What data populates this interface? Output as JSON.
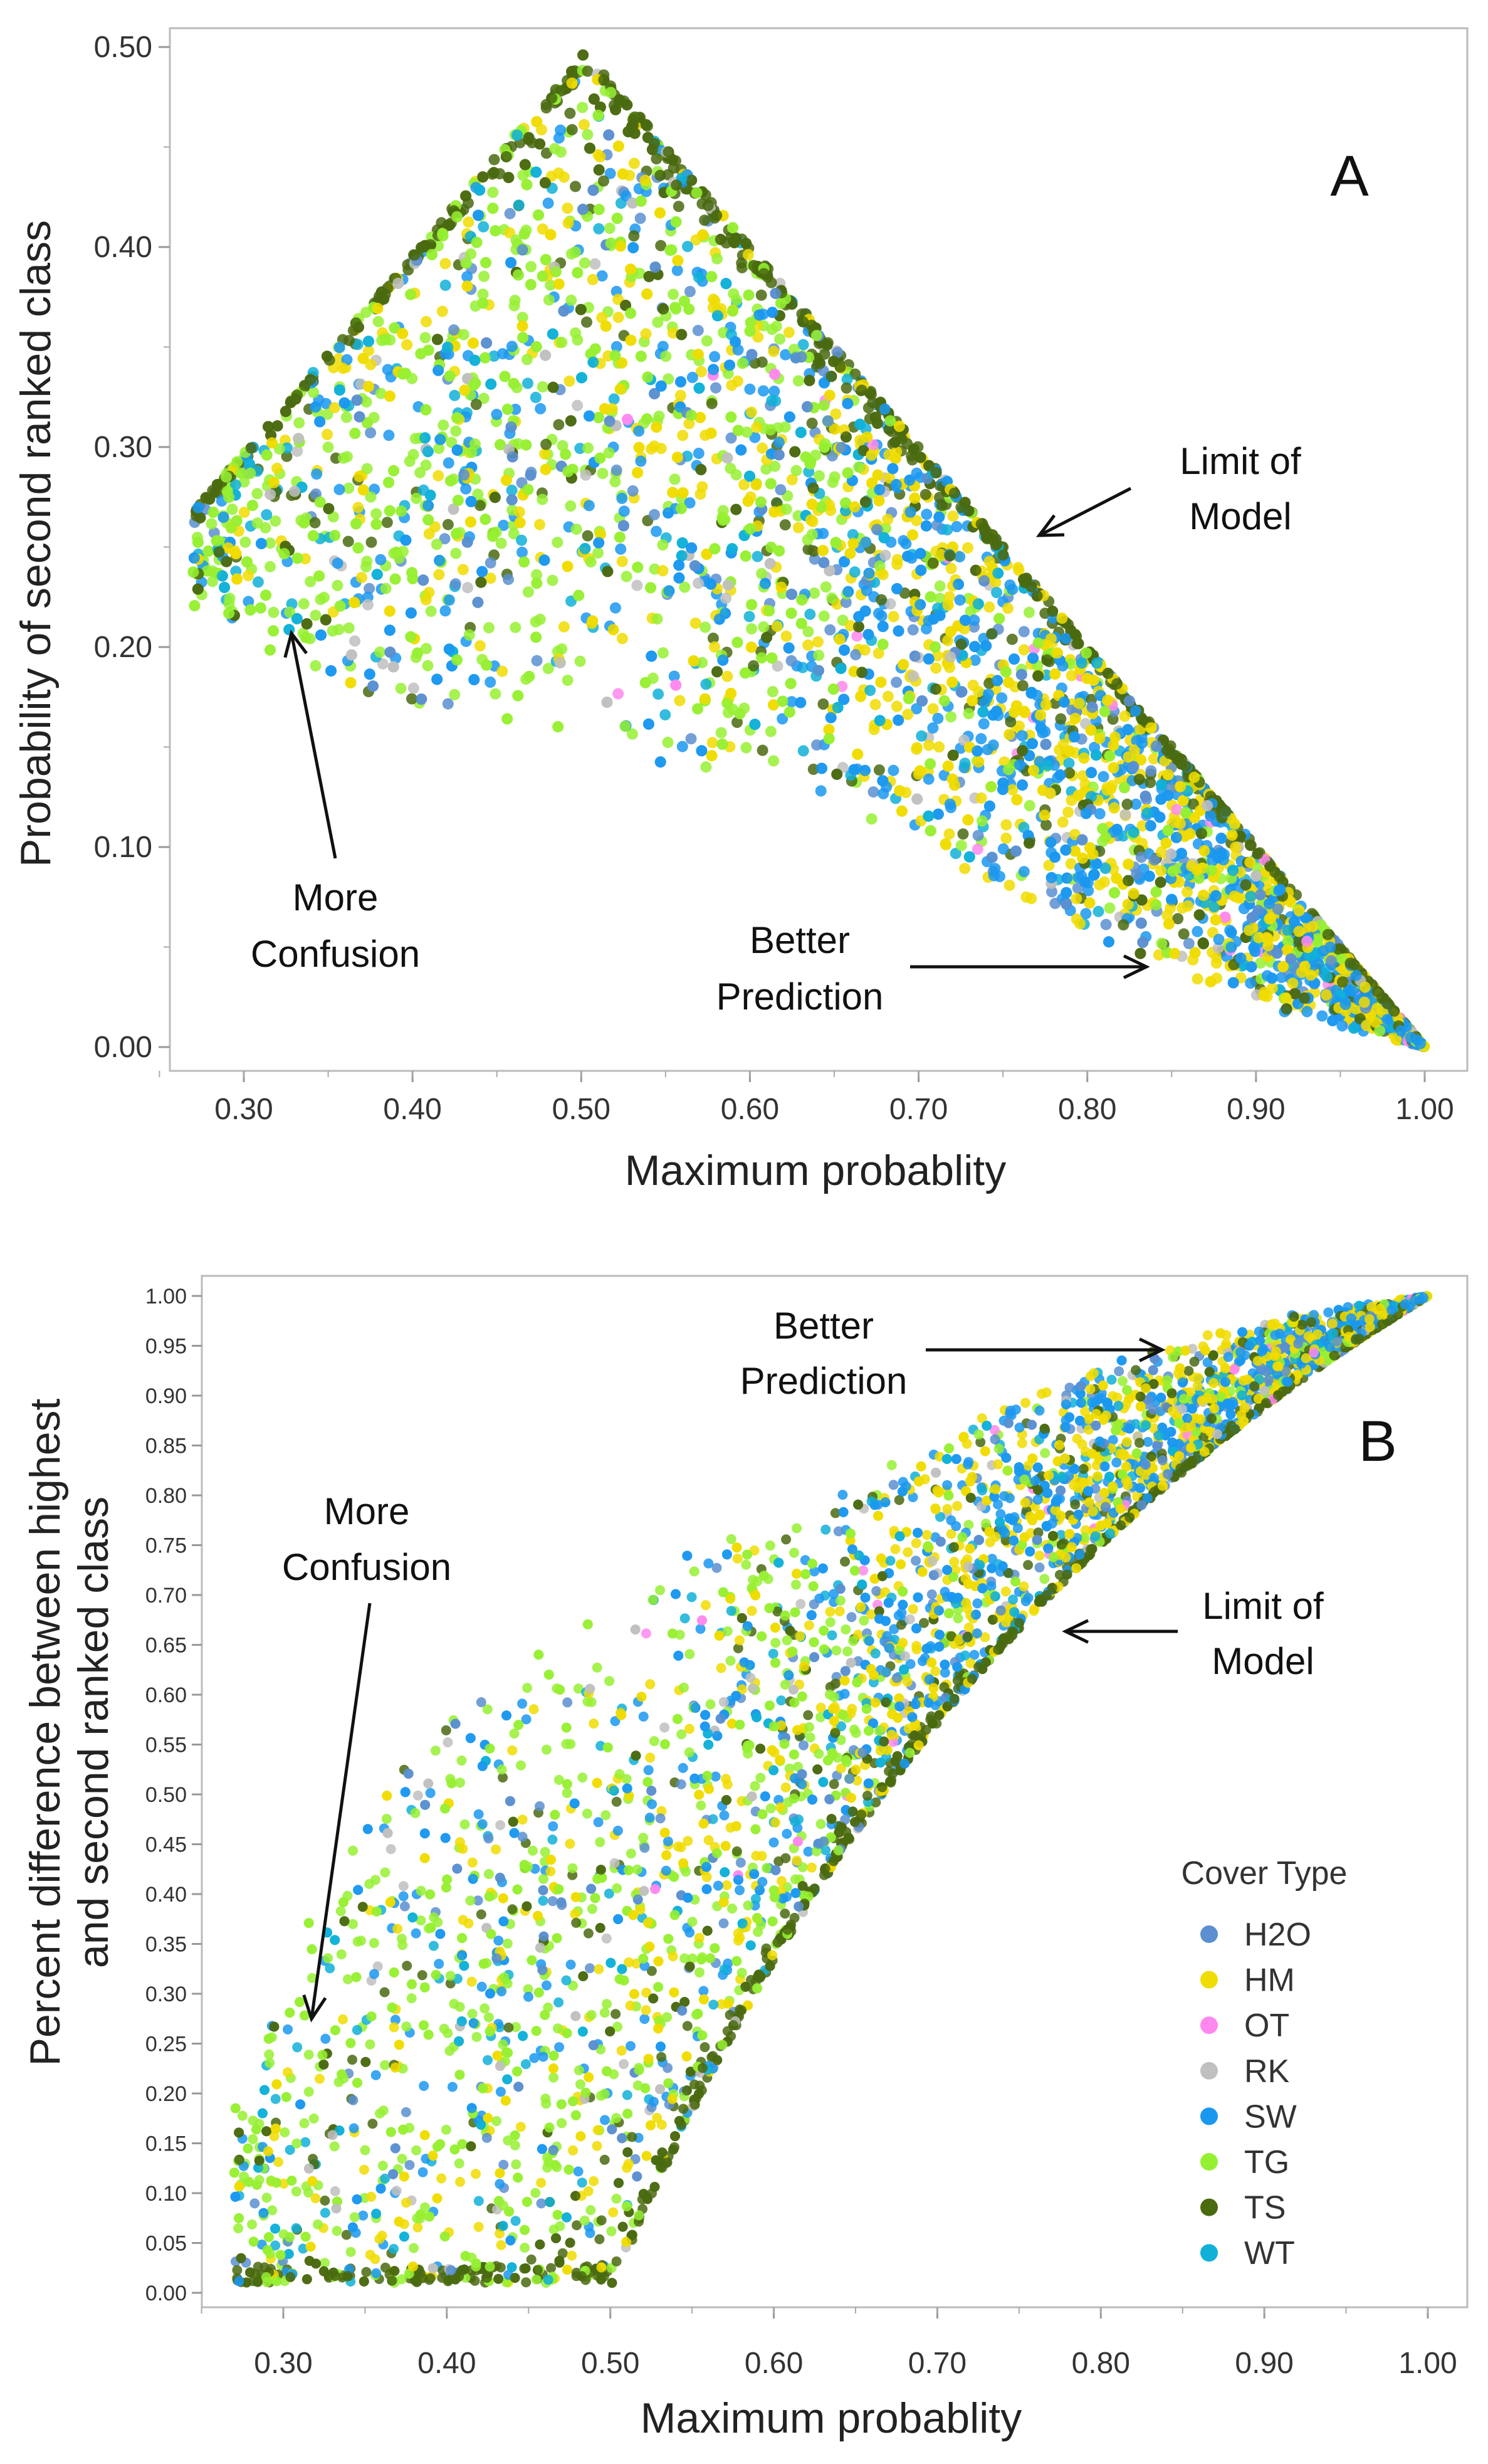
{
  "chart_data": [
    {
      "type": "scatter",
      "panel_label": "A",
      "xlabel": "Maximum probablity",
      "ylabel": "Probability of second ranked class",
      "xlim": [
        0.25,
        1.02
      ],
      "ylim": [
        -0.01,
        0.51
      ],
      "xticks": [
        "0.30",
        "0.40",
        "0.50",
        "0.60",
        "0.70",
        "0.80",
        "0.90",
        "1.00"
      ],
      "yticks": [
        "0.00",
        "0.10",
        "0.20",
        "0.30",
        "0.40",
        "0.50"
      ],
      "annotations": {
        "limit": [
          "Limit of",
          "Model"
        ],
        "confusion": [
          "More",
          "Confusion"
        ],
        "better": [
          "Better",
          "Prediction"
        ]
      },
      "envelope": {
        "upper": "min(x, 1 - x)",
        "lower_points": [
          [
            0.27,
            0.22
          ],
          [
            0.35,
            0.17
          ],
          [
            0.45,
            0.16
          ],
          [
            0.6,
            0.13
          ],
          [
            0.7,
            0.1
          ],
          [
            0.8,
            0.055
          ],
          [
            0.9,
            0.02
          ],
          [
            1.0,
            0.0
          ]
        ]
      }
    },
    {
      "type": "scatter",
      "panel_label": "B",
      "xlabel": "Maximum probablity",
      "ylabel": [
        "Percent difference between highest",
        "and second ranked class"
      ],
      "xlim": [
        0.25,
        1.02
      ],
      "ylim": [
        -0.01,
        1.02
      ],
      "xticks": [
        "0.30",
        "0.40",
        "0.50",
        "0.60",
        "0.70",
        "0.80",
        "0.90",
        "1.00"
      ],
      "yticks": [
        "0.00",
        "0.05",
        "0.10",
        "0.15",
        "0.20",
        "0.25",
        "0.30",
        "0.35",
        "0.40",
        "0.45",
        "0.50",
        "0.55",
        "0.60",
        "0.65",
        "0.70",
        "0.75",
        "0.80",
        "0.85",
        "0.90",
        "0.95",
        "1.00"
      ],
      "annotations": {
        "better": [
          "Better",
          "Prediction"
        ],
        "limit": [
          "Limit of",
          "Model"
        ],
        "confusion": [
          "More",
          "Confusion"
        ]
      },
      "y_definition": "(x - second) / x"
    }
  ],
  "legend": {
    "title": "Cover Type",
    "items": [
      {
        "label": "H2O",
        "color": "#5b8fd0"
      },
      {
        "label": "HM",
        "color": "#f0dc00"
      },
      {
        "label": "OT",
        "color": "#ff88ee"
      },
      {
        "label": "RK",
        "color": "#c0c0c0"
      },
      {
        "label": "SW",
        "color": "#1a98f0"
      },
      {
        "label": "TG",
        "color": "#96f032"
      },
      {
        "label": "TS",
        "color": "#4a6a10"
      },
      {
        "label": "WT",
        "color": "#10b0d8"
      }
    ]
  }
}
